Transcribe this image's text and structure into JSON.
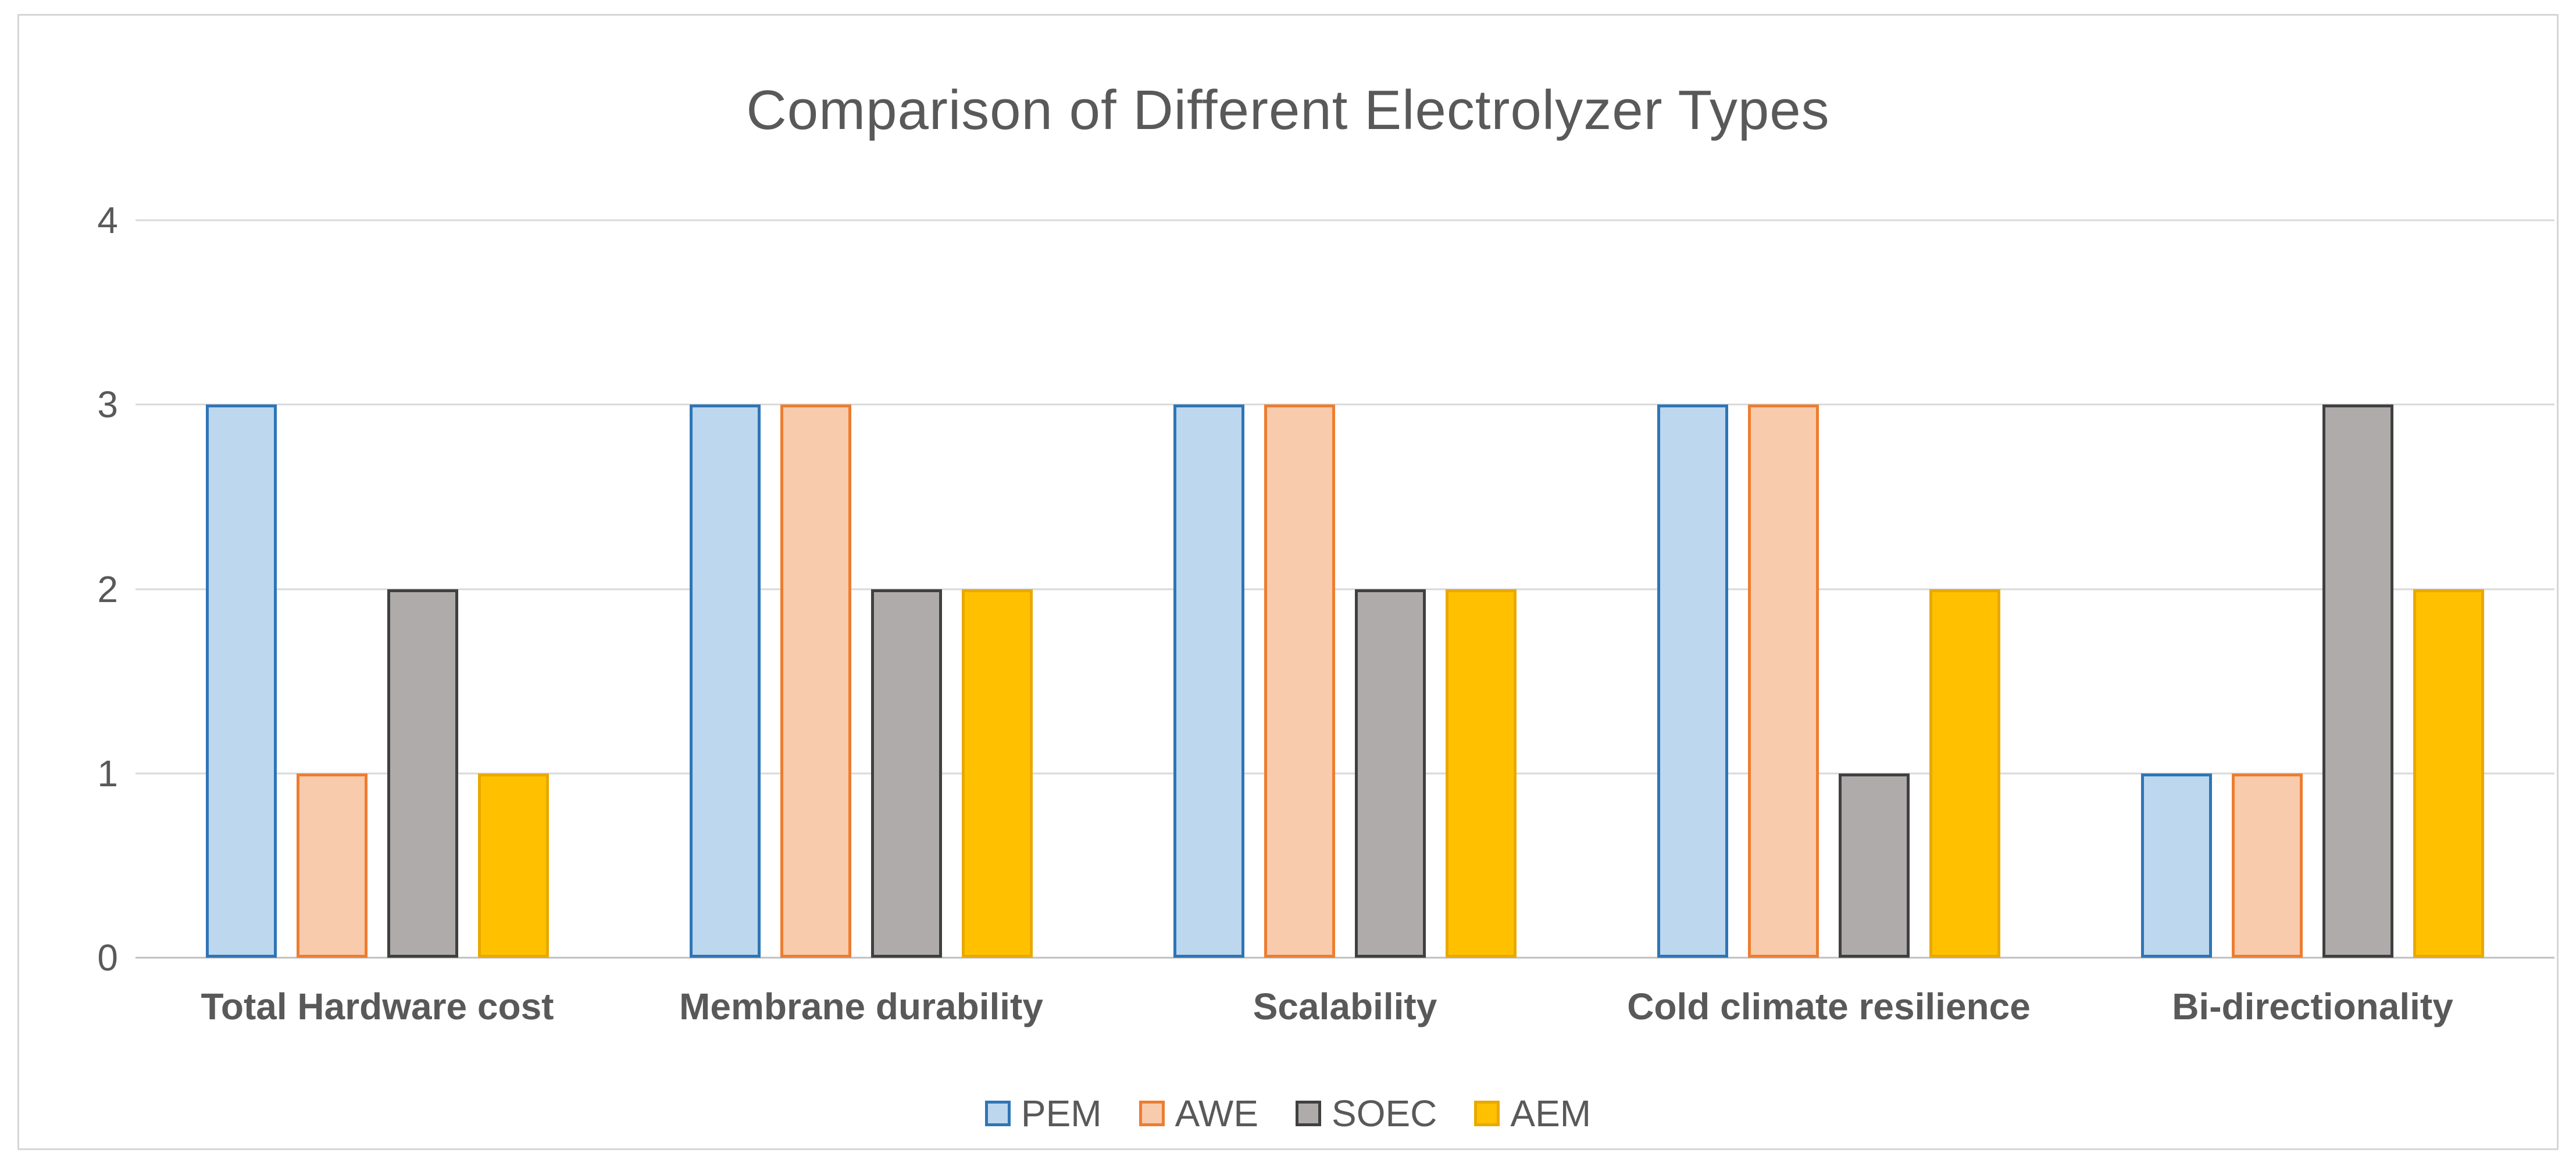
{
  "chart_data": {
    "type": "bar",
    "title": "Comparison of Different Electrolyzer Types",
    "categories": [
      "Total Hardware cost",
      "Membrane durability",
      "Scalability",
      "Cold climate resilience",
      "Bi-directionality"
    ],
    "series": [
      {
        "name": "PEM",
        "fill": "#BDD7EE",
        "border": "#2E75B6",
        "values": [
          3,
          3,
          3,
          3,
          1
        ]
      },
      {
        "name": "AWE",
        "fill": "#F8CBAD",
        "border": "#ED7D31",
        "values": [
          1,
          3,
          3,
          3,
          1
        ]
      },
      {
        "name": "SOEC",
        "fill": "#AFABAB",
        "border": "#404040",
        "values": [
          2,
          2,
          2,
          1,
          3
        ]
      },
      {
        "name": "AEM",
        "fill": "#FFC000",
        "border": "#E8A900",
        "values": [
          1,
          2,
          2,
          2,
          2
        ]
      }
    ],
    "ylim": [
      0,
      4
    ],
    "yticks": [
      0,
      1,
      2,
      3,
      4
    ],
    "grid": true,
    "legend_position": "bottom",
    "colors": {
      "title_text": "#595959",
      "axis_text": "#595959",
      "gridline": "#D9D9D9",
      "frame_border": "#D6D6D6"
    }
  }
}
